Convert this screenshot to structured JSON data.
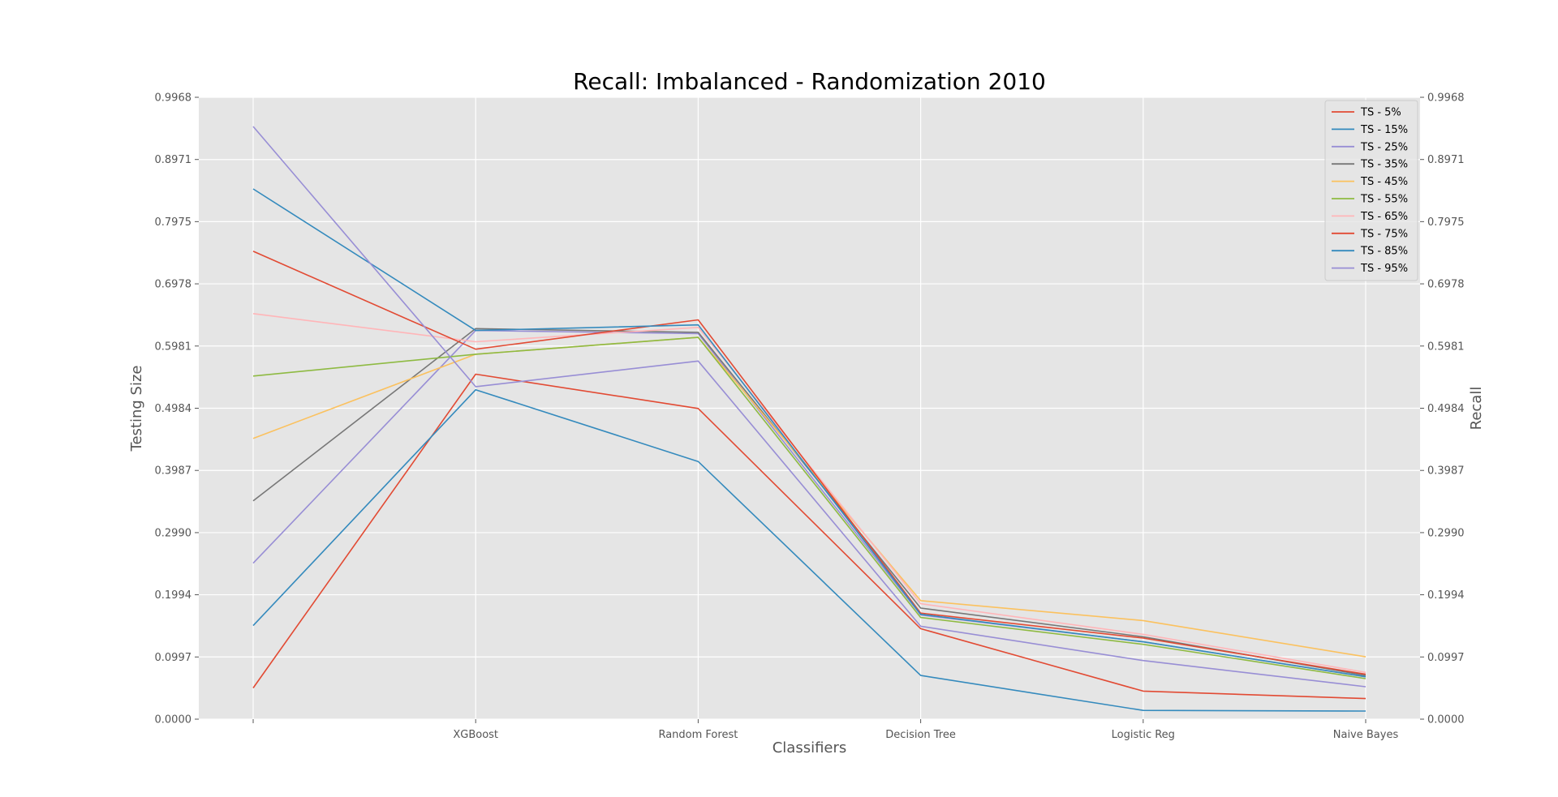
{
  "chart_data": {
    "type": "line",
    "title": "Recall: Imbalanced - Randomization 2010",
    "xlabel": "Classifiers",
    "ylabel_left": "Testing Size",
    "ylabel_right": "Recall",
    "categories": [
      "",
      "XGBoost",
      "Random Forest",
      "Decision Tree",
      "Logistic Reg",
      "Naive Bayes"
    ],
    "yticks": [
      "0.0000",
      "0.0997",
      "0.1994",
      "0.2990",
      "0.3987",
      "0.4984",
      "0.5981",
      "0.6978",
      "0.7975",
      "0.8971",
      "0.9968"
    ],
    "ylim": [
      0,
      0.9968
    ],
    "grid": true,
    "legend_position": "top-right",
    "series": [
      {
        "name": "TS - 5%",
        "color": "#E24A33",
        "values": [
          0.05,
          0.553,
          0.498,
          0.145,
          0.045,
          0.033
        ]
      },
      {
        "name": "TS - 15%",
        "color": "#348ABD",
        "values": [
          0.15,
          0.528,
          0.413,
          0.07,
          0.014,
          0.013
        ]
      },
      {
        "name": "TS - 25%",
        "color": "#988ED5",
        "values": [
          0.25,
          0.623,
          0.618,
          0.167,
          0.124,
          0.068
        ]
      },
      {
        "name": "TS - 35%",
        "color": "#777777",
        "values": [
          0.35,
          0.626,
          0.62,
          0.178,
          0.132,
          0.07
        ]
      },
      {
        "name": "TS - 45%",
        "color": "#FBC15E",
        "values": [
          0.45,
          0.585,
          0.612,
          0.19,
          0.158,
          0.1
        ]
      },
      {
        "name": "TS - 55%",
        "color": "#8EBA42",
        "values": [
          0.55,
          0.585,
          0.612,
          0.163,
          0.12,
          0.065
        ]
      },
      {
        "name": "TS - 65%",
        "color": "#FFB5B8",
        "values": [
          0.65,
          0.605,
          0.628,
          0.185,
          0.136,
          0.075
        ]
      },
      {
        "name": "TS - 75%",
        "color": "#E24A33",
        "values": [
          0.75,
          0.593,
          0.64,
          0.17,
          0.13,
          0.072
        ]
      },
      {
        "name": "TS - 85%",
        "color": "#348ABD",
        "values": [
          0.85,
          0.623,
          0.632,
          0.168,
          0.124,
          0.068
        ]
      },
      {
        "name": "TS - 95%",
        "color": "#988ED5",
        "values": [
          0.95,
          0.533,
          0.574,
          0.149,
          0.094,
          0.052
        ]
      }
    ]
  }
}
